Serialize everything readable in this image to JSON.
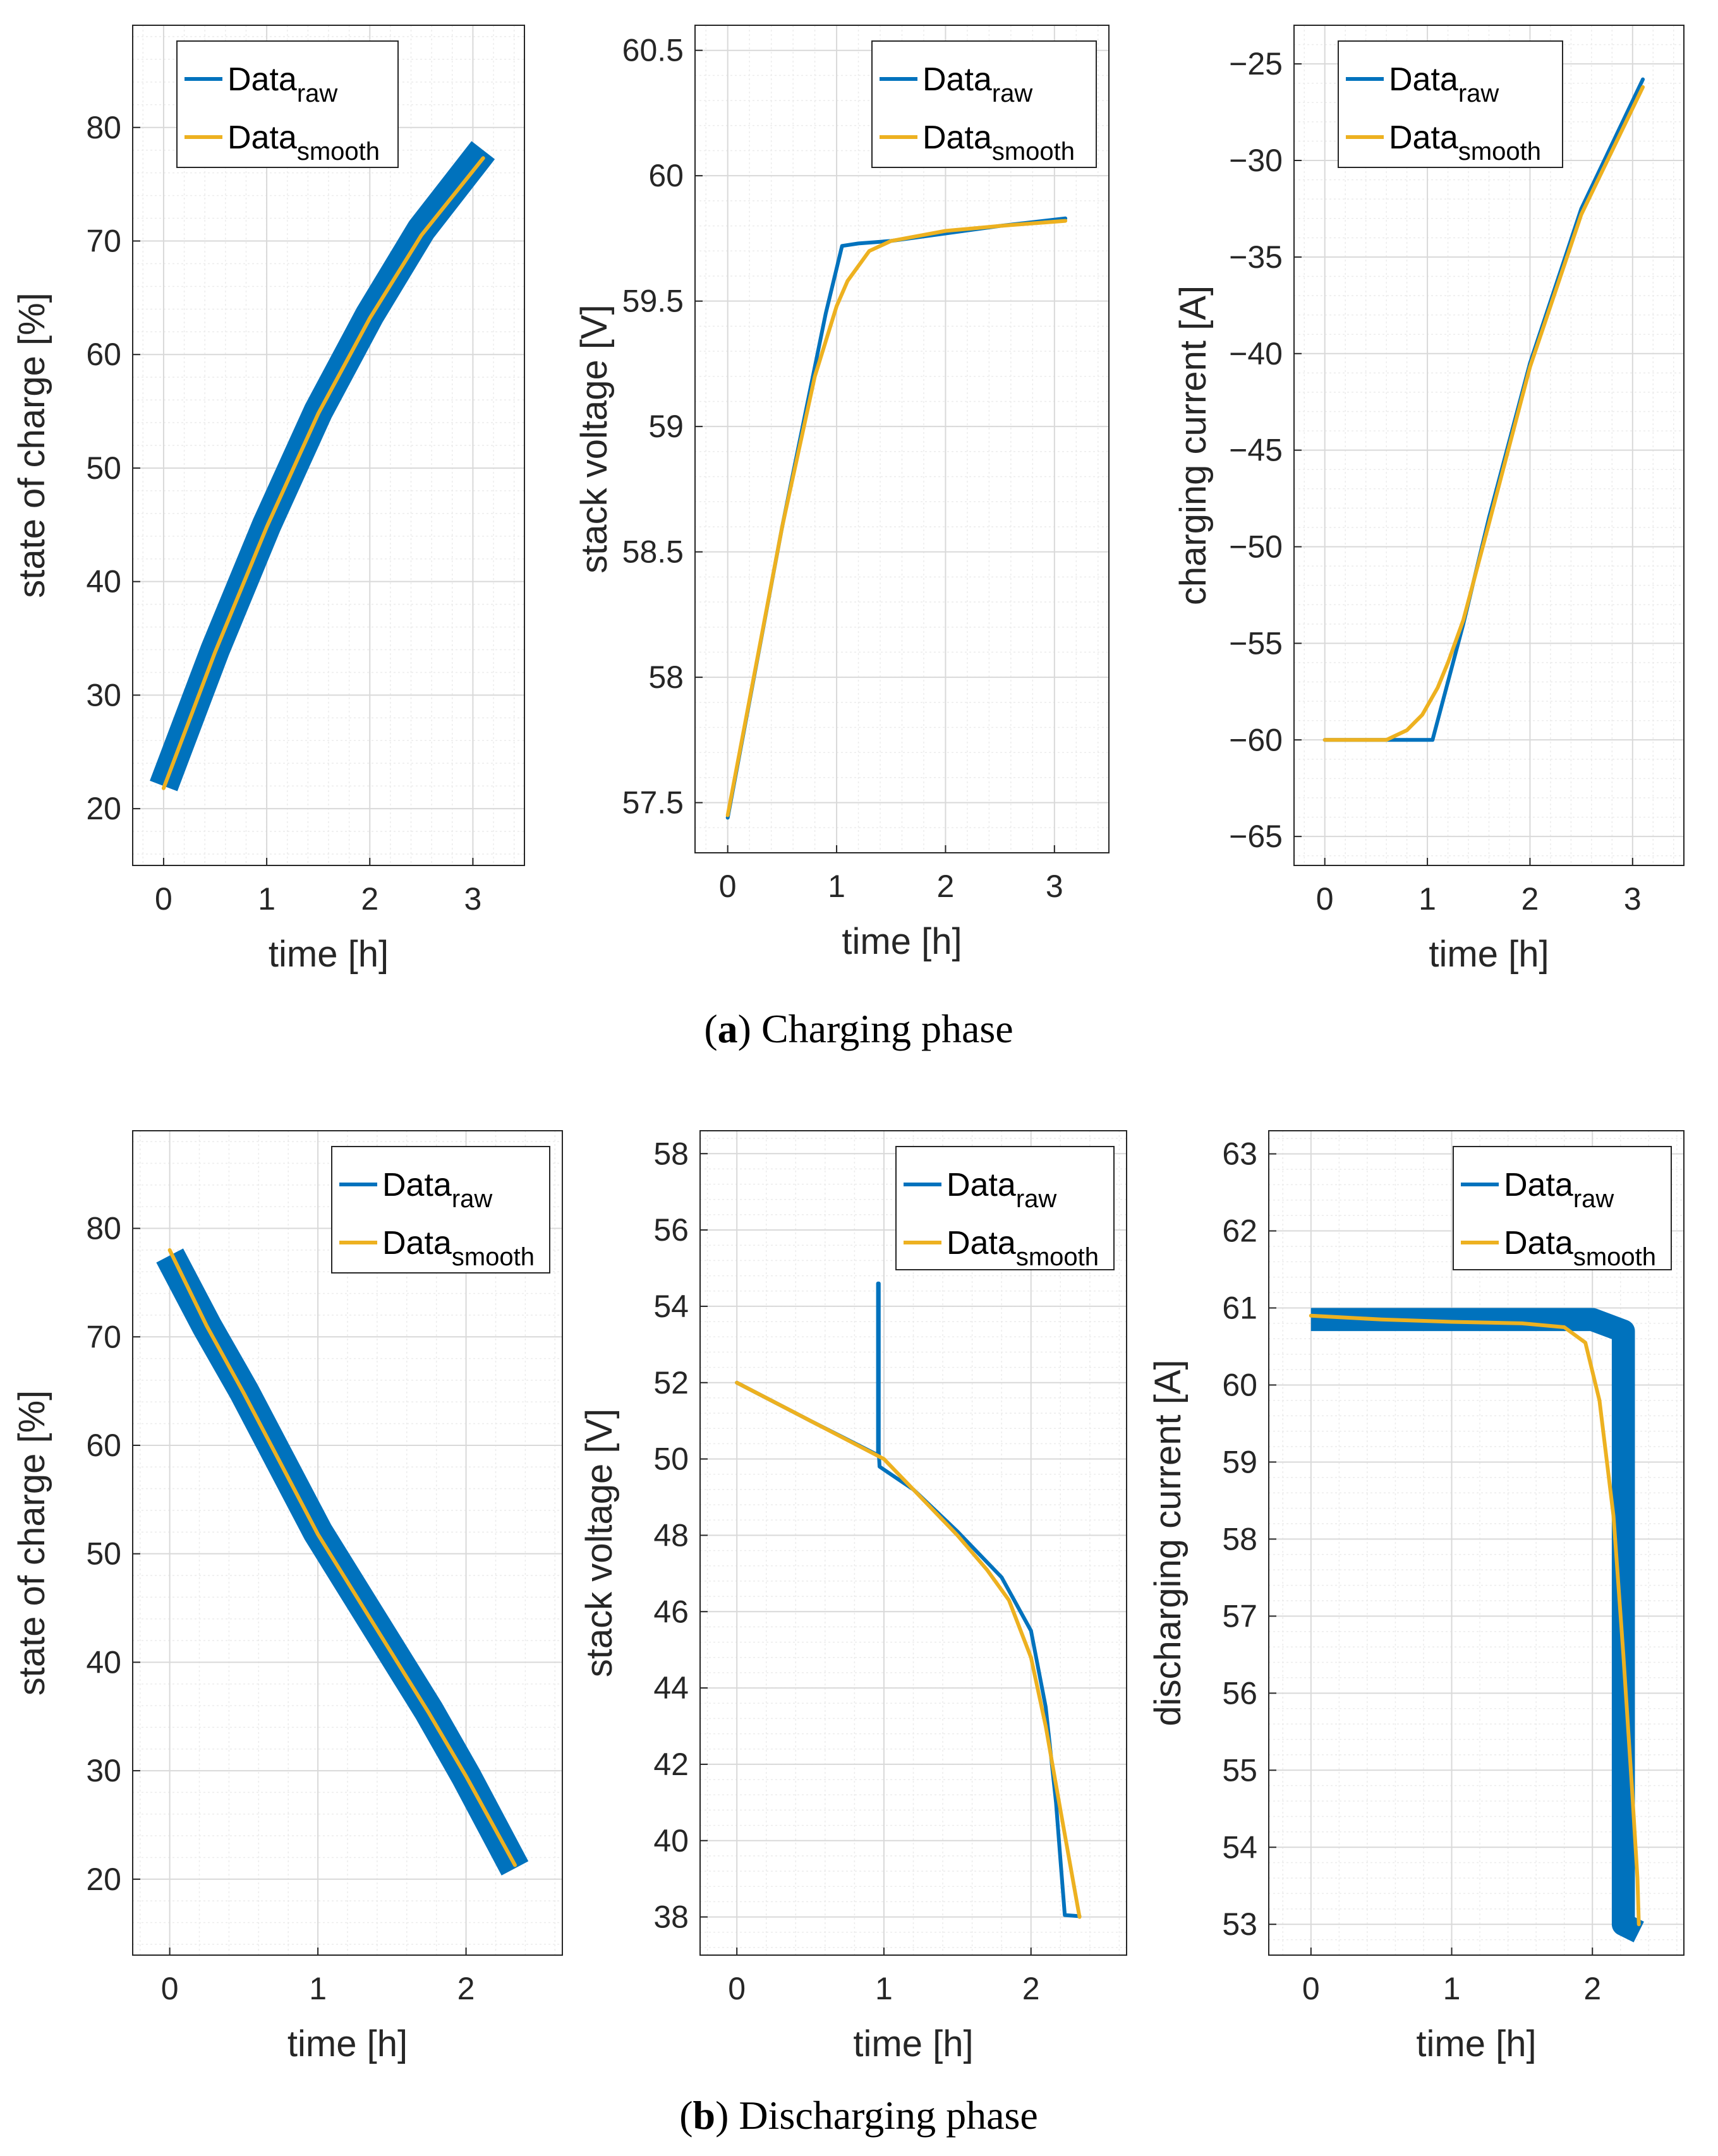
{
  "colors": {
    "raw": "#0072BD",
    "smooth": "#EDB120",
    "axis": "#262626",
    "grid_major": "#d9d9d9",
    "grid_minor": "#ececec"
  },
  "captions": {
    "a": {
      "letter": "a",
      "text": "Charging phase"
    },
    "b": {
      "letter": "b",
      "text": "Discharging phase"
    }
  },
  "chart_data": [
    {
      "id": "a1",
      "type": "line",
      "xlabel": "time [h]",
      "ylabel": "state of charge [%]",
      "xlim": [
        -0.3,
        3.5
      ],
      "ylim": [
        15,
        89
      ],
      "xticks": [
        0,
        1,
        2,
        3
      ],
      "yticks": [
        20,
        30,
        40,
        50,
        60,
        70,
        80
      ],
      "grid": true,
      "legend": "top-left",
      "series": [
        {
          "name": "Data",
          "sub": "raw",
          "style": "band",
          "band": 1.3,
          "x": [
            0,
            0.5,
            1.0,
            1.5,
            2.0,
            2.5,
            3.1
          ],
          "y": [
            22,
            34,
            45,
            55,
            63.5,
            71,
            78
          ]
        },
        {
          "name": "Data",
          "sub": "smooth",
          "style": "line",
          "x": [
            0,
            0.5,
            1.0,
            1.5,
            2.0,
            2.5,
            3.1
          ],
          "y": [
            21.8,
            33.8,
            44.8,
            54.8,
            63.2,
            70.5,
            77.3
          ]
        }
      ]
    },
    {
      "id": "a2",
      "type": "line",
      "xlabel": "time [h]",
      "ylabel": "stack voltage [V]",
      "xlim": [
        -0.3,
        3.5
      ],
      "ylim": [
        57.3,
        60.6
      ],
      "xticks": [
        0,
        1,
        2,
        3
      ],
      "yticks": [
        57.5,
        58,
        58.5,
        59,
        59.5,
        60,
        60.5
      ],
      "grid": true,
      "legend": "top-right",
      "series": [
        {
          "name": "Data",
          "sub": "raw",
          "style": "line",
          "x": [
            0,
            0.5,
            0.9,
            1.05,
            1.2,
            1.5,
            2.0,
            2.5,
            3.1
          ],
          "y": [
            57.44,
            58.6,
            59.45,
            59.72,
            59.73,
            59.74,
            59.77,
            59.8,
            59.83
          ]
        },
        {
          "name": "Data",
          "sub": "smooth",
          "style": "line",
          "x": [
            0,
            0.5,
            0.8,
            1.0,
            1.1,
            1.3,
            1.5,
            2.0,
            2.5,
            3.1
          ],
          "y": [
            57.45,
            58.6,
            59.2,
            59.48,
            59.58,
            59.7,
            59.74,
            59.78,
            59.8,
            59.82
          ]
        }
      ]
    },
    {
      "id": "a3",
      "type": "line",
      "xlabel": "time [h]",
      "ylabel": "charging current [A]",
      "xlim": [
        -0.3,
        3.5
      ],
      "ylim": [
        -66.5,
        -23
      ],
      "xticks": [
        0,
        1,
        2,
        3
      ],
      "yticks": [
        -65,
        -60,
        -55,
        -50,
        -45,
        -40,
        -35,
        -30,
        -25
      ],
      "grid": true,
      "legend": "top-left",
      "series": [
        {
          "name": "Data",
          "sub": "raw",
          "style": "line",
          "x": [
            0,
            0.5,
            1.05,
            1.35,
            1.6,
            2.0,
            2.5,
            3.1
          ],
          "y": [
            -60,
            -60,
            -60,
            -54,
            -48.5,
            -40.5,
            -32.5,
            -25.8
          ]
        },
        {
          "name": "Data",
          "sub": "smooth",
          "style": "line",
          "x": [
            0,
            0.6,
            0.8,
            0.95,
            1.1,
            1.2,
            1.35,
            1.6,
            2.0,
            2.5,
            3.1
          ],
          "y": [
            -60,
            -60,
            -59.5,
            -58.7,
            -57.3,
            -56,
            -53.8,
            -48.8,
            -40.7,
            -32.8,
            -26.2
          ]
        }
      ]
    },
    {
      "id": "b1",
      "type": "line",
      "xlabel": "time [h]",
      "ylabel": "state of charge [%]",
      "xlim": [
        -0.25,
        2.65
      ],
      "ylim": [
        13,
        89
      ],
      "xticks": [
        0,
        1,
        2
      ],
      "yticks": [
        20,
        30,
        40,
        50,
        60,
        70,
        80
      ],
      "grid": true,
      "legend": "top-right",
      "series": [
        {
          "name": "Data",
          "sub": "raw",
          "style": "band",
          "band": 1.4,
          "x": [
            0,
            0.25,
            0.5,
            0.75,
            1.0,
            1.25,
            1.5,
            1.75,
            2.0,
            2.33
          ],
          "y": [
            77.5,
            71,
            65,
            58.5,
            52,
            46.5,
            41,
            35.5,
            29.5,
            21
          ]
        },
        {
          "name": "Data",
          "sub": "smooth",
          "style": "line",
          "x": [
            0,
            0.25,
            0.5,
            0.75,
            1.0,
            1.25,
            1.5,
            1.75,
            2.0,
            2.33
          ],
          "y": [
            78,
            71,
            64.8,
            58.3,
            51.8,
            46.3,
            40.8,
            35.3,
            29.5,
            21.3
          ]
        }
      ]
    },
    {
      "id": "b2",
      "type": "line",
      "xlabel": "time [h]",
      "ylabel": "stack voltage [V]",
      "xlim": [
        -0.25,
        2.65
      ],
      "ylim": [
        37,
        58.6
      ],
      "xticks": [
        0,
        1,
        2
      ],
      "yticks": [
        38,
        40,
        42,
        44,
        46,
        48,
        50,
        52,
        54,
        56,
        58
      ],
      "grid": true,
      "legend": "top-right",
      "series": [
        {
          "name": "Data",
          "sub": "raw",
          "style": "line",
          "x": [
            0,
            0.5,
            0.96,
            0.96,
            0.965,
            0.965,
            0.97,
            1.2,
            1.5,
            1.8,
            2.0,
            2.1,
            2.17,
            2.2,
            2.23,
            2.33
          ],
          "y": [
            52,
            51,
            50.1,
            54.6,
            54.6,
            50.2,
            49.8,
            49.2,
            48.1,
            46.9,
            45.5,
            43.5,
            41,
            39.5,
            38.05,
            38.02
          ]
        },
        {
          "name": "Data",
          "sub": "smooth",
          "style": "line",
          "x": [
            0,
            0.5,
            1.0,
            1.2,
            1.5,
            1.7,
            1.85,
            2.0,
            2.1,
            2.2,
            2.33
          ],
          "y": [
            52,
            51,
            50,
            49.2,
            48,
            47.1,
            46.3,
            44.8,
            43,
            40.8,
            38
          ]
        }
      ]
    },
    {
      "id": "b3",
      "type": "line",
      "xlabel": "time [h]",
      "ylabel": "discharging current [A]",
      "xlim": [
        -0.3,
        2.65
      ],
      "ylim": [
        52.6,
        63.3
      ],
      "xticks": [
        0,
        1,
        2
      ],
      "yticks": [
        53,
        54,
        55,
        56,
        57,
        58,
        59,
        60,
        61,
        62,
        63
      ],
      "grid": true,
      "legend": "top-right",
      "series": [
        {
          "name": "Data",
          "sub": "raw",
          "style": "band",
          "band": 0.15,
          "x": [
            0,
            1.0,
            2.0,
            2.22,
            2.22,
            2.33
          ],
          "y": [
            60.85,
            60.85,
            60.85,
            60.7,
            53.0,
            52.9
          ]
        },
        {
          "name": "Data",
          "sub": "smooth",
          "style": "line",
          "x": [
            0,
            0.5,
            1.0,
            1.5,
            1.8,
            1.95,
            2.05,
            2.15,
            2.22,
            2.28,
            2.32,
            2.33
          ],
          "y": [
            60.9,
            60.85,
            60.82,
            60.8,
            60.75,
            60.55,
            59.8,
            58.3,
            56.5,
            54.8,
            53.6,
            53.0
          ]
        }
      ]
    }
  ]
}
